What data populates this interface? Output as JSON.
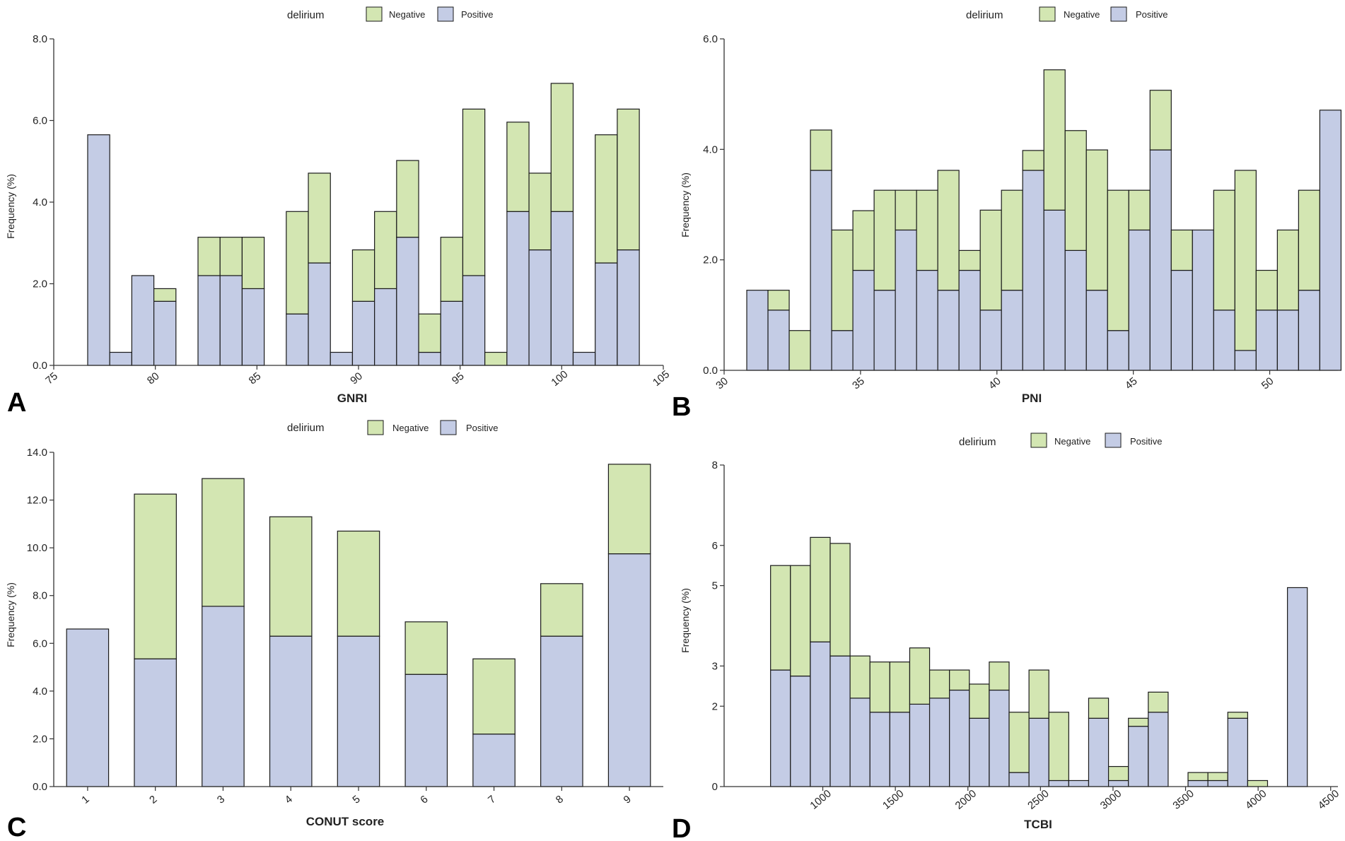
{
  "colors": {
    "negative": "#d3e6b2",
    "positive": "#c4cce5",
    "stroke": "#1a1a1a",
    "axis": "#333333"
  },
  "chart_data": [
    {
      "panel": "A",
      "type": "bar",
      "stacked": true,
      "xlabel": "GNRI",
      "ylabel": "Frequency (%)",
      "xlim": [
        75,
        105
      ],
      "ylim": [
        0,
        8
      ],
      "xticks": [
        "75",
        "80",
        "85",
        "90",
        "95",
        "100",
        "105"
      ],
      "yticks": [
        "0.0",
        "2.0",
        "4.0",
        "6.0",
        "8.0"
      ],
      "bin_start": 76.67,
      "bin_width": 1.086,
      "legend": {
        "title": "delirium",
        "entries": [
          "Negative",
          "Positive"
        ],
        "placement": "top"
      },
      "series": [
        {
          "name": "Positive",
          "values": [
            5.65,
            0.32,
            2.2,
            1.57,
            0,
            2.2,
            2.2,
            1.88,
            0,
            1.26,
            2.51,
            0.32,
            1.57,
            1.88,
            3.14,
            0.32,
            1.57,
            2.2,
            0,
            3.77,
            2.83,
            3.77,
            0.32,
            2.51,
            2.83
          ]
        },
        {
          "name": "Negative",
          "values": [
            0,
            0,
            0,
            0.31,
            0,
            0.94,
            0.94,
            1.26,
            0,
            2.51,
            2.2,
            0,
            1.26,
            1.89,
            1.88,
            0.94,
            1.57,
            4.08,
            0.32,
            2.19,
            1.88,
            3.14,
            0,
            3.14,
            3.45
          ]
        }
      ]
    },
    {
      "panel": "B",
      "type": "bar",
      "stacked": true,
      "xlabel": "PNI",
      "ylabel": "Frequency (%)",
      "xlim": [
        30,
        52.5
      ],
      "ylim": [
        0,
        6
      ],
      "xticks": [
        "30",
        "35",
        "40",
        "45",
        "50"
      ],
      "yticks": [
        "0.0",
        "2.0",
        "4.0",
        "6.0"
      ],
      "bin_start": 30.83,
      "bin_width": 0.778,
      "legend": {
        "title": "delirium",
        "entries": [
          "Negative",
          "Positive"
        ],
        "placement": "top"
      },
      "series": [
        {
          "name": "Positive",
          "values": [
            1.45,
            1.09,
            0,
            3.62,
            0.72,
            1.81,
            1.45,
            2.54,
            1.81,
            1.45,
            1.81,
            1.09,
            1.45,
            3.62,
            2.9,
            2.17,
            1.45,
            0.72,
            2.54,
            3.99,
            1.81,
            2.54,
            1.09,
            0.36,
            1.09,
            1.09,
            1.45,
            4.71
          ]
        },
        {
          "name": "Negative",
          "values": [
            0,
            0.36,
            0.72,
            0.73,
            1.82,
            1.08,
            1.81,
            0.72,
            1.45,
            2.17,
            0.36,
            1.81,
            1.81,
            0.36,
            2.54,
            2.17,
            2.54,
            2.54,
            0.72,
            1.08,
            0.73,
            0,
            2.17,
            3.26,
            0.72,
            1.45,
            1.81,
            0
          ]
        }
      ]
    },
    {
      "panel": "C",
      "type": "bar",
      "stacked": true,
      "xlabel": "CONUT score",
      "ylabel": "Frequency (%)",
      "xlim": [
        0.5,
        9.5
      ],
      "ylim": [
        0,
        14
      ],
      "categories": [
        "1",
        "2",
        "3",
        "4",
        "5",
        "6",
        "7",
        "8",
        "9"
      ],
      "yticks": [
        "0.0",
        "2.0",
        "4.0",
        "6.0",
        "8.0",
        "10.0",
        "12.0",
        "14.0"
      ],
      "legend": {
        "title": "delirium",
        "entries": [
          "Negative",
          "Positive"
        ],
        "placement": "top"
      },
      "series": [
        {
          "name": "Positive",
          "values": [
            6.6,
            5.35,
            7.55,
            6.3,
            6.3,
            4.7,
            2.2,
            6.3,
            9.75
          ]
        },
        {
          "name": "Negative",
          "values": [
            0,
            6.9,
            5.35,
            5.0,
            4.4,
            2.2,
            3.15,
            2.2,
            3.75
          ]
        }
      ]
    },
    {
      "panel": "D",
      "type": "bar",
      "stacked": true,
      "xlabel": "TCBI",
      "ylabel": "Frequency (%)",
      "xlim": [
        320,
        4550
      ],
      "ylim": [
        0,
        8
      ],
      "xticks": [
        "1000",
        "1500",
        "2000",
        "2500",
        "3000",
        "3500",
        "4000",
        "4500"
      ],
      "yticks": [
        "0",
        "2",
        "3",
        "5",
        "6",
        "8"
      ],
      "ytick_values": [
        0,
        2,
        3,
        5,
        6,
        8
      ],
      "bin_start": 640,
      "bin_width": 137,
      "legend": {
        "title": "delirium",
        "entries": [
          "Negative",
          "Positive"
        ],
        "placement": "top"
      },
      "series": [
        {
          "name": "Positive",
          "values": [
            2.9,
            2.75,
            3.6,
            3.25,
            2.2,
            1.85,
            1.85,
            2.05,
            2.2,
            2.4,
            1.7,
            2.4,
            0.35,
            1.7,
            0.15,
            0.15,
            1.7,
            0.15,
            1.5,
            1.85,
            0,
            0.15,
            0.15,
            1.7,
            0,
            0,
            4.95
          ]
        },
        {
          "name": "Negative",
          "values": [
            2.6,
            2.75,
            2.6,
            2.8,
            1.05,
            1.25,
            1.25,
            1.4,
            0.7,
            0.5,
            0.85,
            0.7,
            1.5,
            1.2,
            1.7,
            0,
            0.5,
            0.35,
            0.2,
            0.5,
            0,
            0.2,
            0.2,
            0.15,
            0.15,
            0,
            0
          ]
        }
      ]
    }
  ]
}
